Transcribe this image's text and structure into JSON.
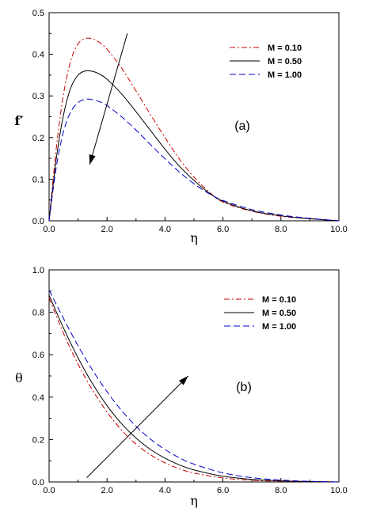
{
  "chart_data": [
    {
      "type": "line",
      "panel_label": "(a)",
      "xlabel": "η",
      "ylabel": "f′",
      "xlim": [
        0,
        10
      ],
      "ylim": [
        0,
        0.5
      ],
      "xticks": [
        "0.0",
        "2.0",
        "4.0",
        "6.0",
        "8.0",
        "10.0"
      ],
      "yticks": [
        "0.0",
        "0.1",
        "0.2",
        "0.3",
        "0.4",
        "0.5"
      ],
      "legend_position": "top-right",
      "grid": false,
      "arrow": {
        "from": [
          2.7,
          0.45
        ],
        "to": [
          1.4,
          0.135
        ]
      },
      "series": [
        {
          "name": "M = 0.10",
          "color": "#cc0000",
          "dash": "dashdot",
          "x": [
            0,
            0.25,
            0.5,
            0.75,
            1.0,
            1.25,
            1.5,
            1.75,
            2.0,
            2.5,
            3.0,
            3.5,
            4.0,
            4.5,
            5.0,
            5.5,
            6.0,
            7.0,
            8.0,
            9.0,
            10.0
          ],
          "y": [
            0,
            0.175,
            0.305,
            0.385,
            0.425,
            0.438,
            0.437,
            0.428,
            0.412,
            0.367,
            0.312,
            0.255,
            0.2,
            0.148,
            0.105,
            0.071,
            0.045,
            0.023,
            0.011,
            0.005,
            0.0
          ]
        },
        {
          "name": "M = 0.50",
          "color": "#000000",
          "dash": "solid",
          "x": [
            0,
            0.25,
            0.5,
            0.75,
            1.0,
            1.25,
            1.5,
            1.75,
            2.0,
            2.5,
            3.0,
            3.5,
            4.0,
            4.5,
            5.0,
            5.5,
            6.0,
            7.0,
            8.0,
            9.0,
            10.0
          ],
          "y": [
            0,
            0.15,
            0.255,
            0.32,
            0.35,
            0.36,
            0.359,
            0.352,
            0.34,
            0.305,
            0.262,
            0.217,
            0.172,
            0.131,
            0.097,
            0.068,
            0.047,
            0.024,
            0.012,
            0.005,
            0.0
          ]
        },
        {
          "name": "M = 1.00",
          "color": "#0000cc",
          "dash": "dash",
          "x": [
            0,
            0.25,
            0.5,
            0.75,
            1.0,
            1.25,
            1.5,
            1.75,
            2.0,
            2.5,
            3.0,
            3.5,
            4.0,
            4.5,
            5.0,
            5.5,
            6.0,
            7.0,
            8.0,
            9.0,
            10.0
          ],
          "y": [
            0,
            0.13,
            0.215,
            0.262,
            0.284,
            0.292,
            0.291,
            0.286,
            0.277,
            0.25,
            0.218,
            0.183,
            0.149,
            0.117,
            0.089,
            0.066,
            0.049,
            0.027,
            0.014,
            0.006,
            0.0
          ]
        }
      ]
    },
    {
      "type": "line",
      "panel_label": "(b)",
      "xlabel": "η",
      "ylabel": "θ",
      "xlim": [
        0,
        10
      ],
      "ylim": [
        0,
        1.0
      ],
      "xticks": [
        "0.0",
        "2.0",
        "4.0",
        "6.0",
        "8.0",
        "10.0"
      ],
      "yticks": [
        "0.0",
        "0.2",
        "0.4",
        "0.6",
        "0.8",
        "1.0"
      ],
      "legend_position": "top-right",
      "grid": false,
      "arrow": {
        "from": [
          1.3,
          0.02
        ],
        "to": [
          4.8,
          0.5
        ]
      },
      "series": [
        {
          "name": "M = 0.10",
          "color": "#cc0000",
          "dash": "dashdot",
          "x": [
            0,
            0.5,
            1.0,
            1.5,
            2.0,
            2.5,
            3.0,
            3.5,
            4.0,
            4.5,
            5.0,
            6.0,
            7.0,
            8.0,
            9.0,
            10.0
          ],
          "y": [
            0.868,
            0.7,
            0.555,
            0.433,
            0.33,
            0.245,
            0.178,
            0.128,
            0.09,
            0.062,
            0.042,
            0.019,
            0.008,
            0.003,
            0.001,
            0.0
          ]
        },
        {
          "name": "M = 0.50",
          "color": "#000000",
          "dash": "solid",
          "x": [
            0,
            0.5,
            1.0,
            1.5,
            2.0,
            2.5,
            3.0,
            3.5,
            4.0,
            4.5,
            5.0,
            6.0,
            7.0,
            8.0,
            9.0,
            10.0
          ],
          "y": [
            0.88,
            0.725,
            0.585,
            0.463,
            0.36,
            0.275,
            0.207,
            0.153,
            0.112,
            0.08,
            0.057,
            0.027,
            0.012,
            0.005,
            0.002,
            0.0
          ]
        },
        {
          "name": "M = 1.00",
          "color": "#0000cc",
          "dash": "dash",
          "x": [
            0,
            0.5,
            1.0,
            1.5,
            2.0,
            2.5,
            3.0,
            3.5,
            4.0,
            4.5,
            5.0,
            6.0,
            7.0,
            8.0,
            9.0,
            10.0
          ],
          "y": [
            0.905,
            0.77,
            0.642,
            0.527,
            0.425,
            0.337,
            0.263,
            0.202,
            0.153,
            0.114,
            0.084,
            0.043,
            0.02,
            0.009,
            0.003,
            0.0
          ]
        }
      ]
    }
  ]
}
